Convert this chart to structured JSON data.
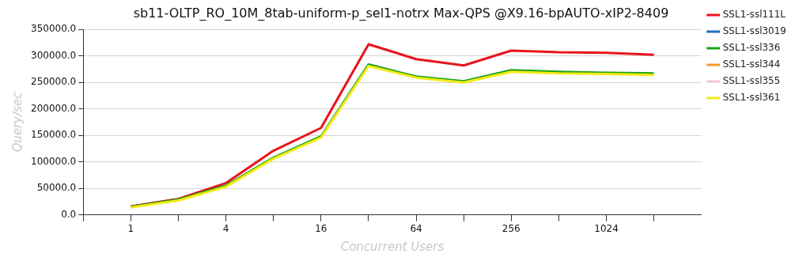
{
  "chart_data": {
    "type": "line",
    "title": "sb11-OLTP_RO_10M_8tab-uniform-p_sel1-notrx Max-QPS @X9.16-bpAUTO-xIP2-8409",
    "xlabel": "Concurrent Users",
    "ylabel": "Query/sec",
    "categories": [
      "1",
      null,
      "4",
      null,
      "16",
      null,
      "64",
      null,
      "256",
      null,
      "1024",
      null
    ],
    "series": [
      {
        "name": "SSL1-ssl111L",
        "color": "#e8141c",
        "values": [
          16000,
          30000,
          60000,
          121000,
          164000,
          322000,
          294000,
          282000,
          310000,
          307000,
          306000,
          302000
        ]
      },
      {
        "name": "SSL1-ssl3019",
        "color": "#1f6fc0",
        "values": [
          null,
          null,
          null,
          null,
          null,
          null,
          null,
          null,
          null,
          null,
          null,
          null
        ]
      },
      {
        "name": "SSL1-ssl336",
        "color": "#1aa31a",
        "values": [
          15000,
          29000,
          55000,
          108000,
          148000,
          284000,
          261000,
          252000,
          273000,
          270000,
          268000,
          267000
        ]
      },
      {
        "name": "SSL1-ssl344",
        "color": "#f39a2a",
        "values": [
          null,
          null,
          null,
          null,
          null,
          null,
          null,
          null,
          null,
          null,
          null,
          null
        ]
      },
      {
        "name": "SSL1-ssl355",
        "color": "#f6c6cc",
        "values": [
          null,
          null,
          null,
          null,
          null,
          null,
          null,
          null,
          null,
          null,
          null,
          null
        ]
      },
      {
        "name": "SSL1-ssl361",
        "color": "#f5ea14",
        "values": [
          14000,
          27000,
          53000,
          106000,
          146000,
          281000,
          259000,
          250000,
          270000,
          267000,
          266000,
          264000
        ]
      }
    ],
    "ylim": [
      0,
      350000
    ],
    "yticks": [
      {
        "value": 0,
        "label": "0.0"
      },
      {
        "value": 50000,
        "label": "50000.0"
      },
      {
        "value": 100000,
        "label": "100000.0"
      },
      {
        "value": 150000,
        "label": "150000.0"
      },
      {
        "value": 200000,
        "label": "200000.0"
      },
      {
        "value": 250000,
        "label": "250000.0"
      },
      {
        "value": 300000,
        "label": "300000.0"
      },
      {
        "value": 350000,
        "label": "350000.0"
      }
    ],
    "grid": "y",
    "legend": "right",
    "marker": "none",
    "line_style": "solid"
  }
}
